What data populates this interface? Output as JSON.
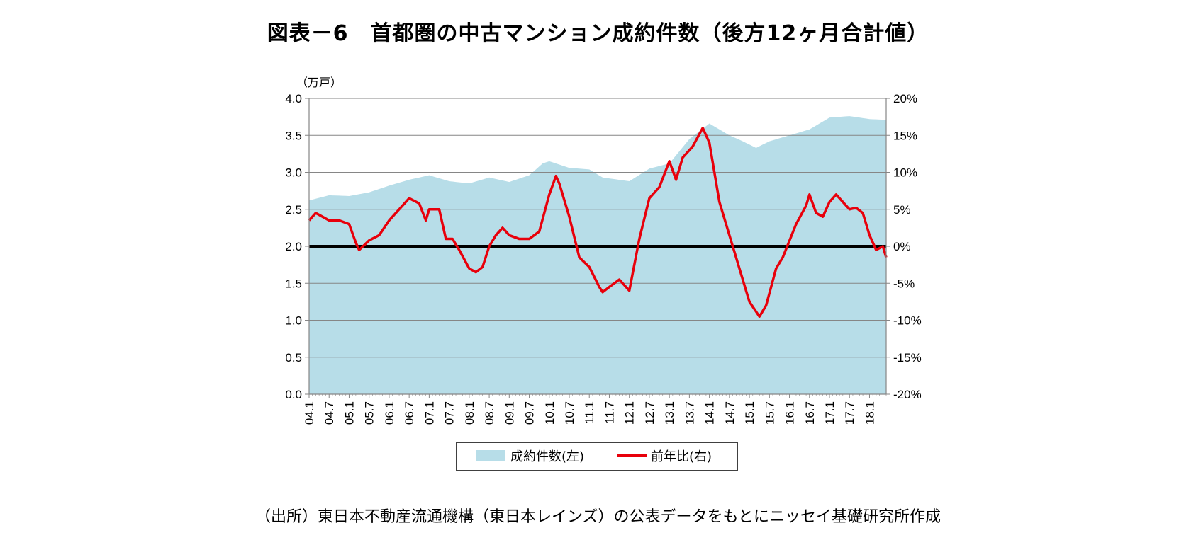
{
  "title": "図表－6　首都圏の中古マンション成約件数（後方12ヶ月合計値）",
  "source": "（出所）東日本不動産流通機構（東日本レインズ）の公表データをもとにニッセイ基礎研究所作成",
  "colors": {
    "area": "#b7dde8",
    "line": "#e8000b",
    "zero": "#000000",
    "grid": "#868686"
  },
  "chart_data": {
    "type": "area",
    "left_unit": "（万戸）",
    "left_axis": {
      "range": [
        0,
        4.0
      ],
      "ticks": [
        "0.0",
        "0.5",
        "1.0",
        "1.5",
        "2.0",
        "2.5",
        "3.0",
        "3.5",
        "4.0"
      ]
    },
    "right_axis": {
      "range": [
        -20,
        20
      ],
      "ticks": [
        "-20%",
        "-15%",
        "-10%",
        "-5%",
        "0%",
        "5%",
        "10%",
        "15%",
        "20%"
      ]
    },
    "x_ticks": [
      "04.1",
      "04.7",
      "05.1",
      "05.7",
      "06.1",
      "06.7",
      "07.1",
      "07.7",
      "08.1",
      "08.7",
      "09.1",
      "09.7",
      "10.1",
      "10.7",
      "11.1",
      "11.7",
      "12.1",
      "12.7",
      "13.1",
      "13.7",
      "14.1",
      "14.7",
      "15.1",
      "15.7",
      "16.1",
      "16.7",
      "17.1",
      "17.7",
      "18.1"
    ],
    "grid": true,
    "legend_position": "bottom",
    "series": [
      {
        "name": "成約件数(左)",
        "type": "area",
        "axis": "left",
        "anchors": [
          [
            0,
            2.62
          ],
          [
            6,
            2.69
          ],
          [
            12,
            2.68
          ],
          [
            18,
            2.73
          ],
          [
            24,
            2.82
          ],
          [
            30,
            2.9
          ],
          [
            36,
            2.96
          ],
          [
            42,
            2.88
          ],
          [
            48,
            2.85
          ],
          [
            54,
            2.93
          ],
          [
            60,
            2.87
          ],
          [
            66,
            2.96
          ],
          [
            70,
            3.12
          ],
          [
            72,
            3.15
          ],
          [
            78,
            3.06
          ],
          [
            84,
            3.04
          ],
          [
            88,
            2.93
          ],
          [
            96,
            2.88
          ],
          [
            102,
            3.05
          ],
          [
            108,
            3.12
          ],
          [
            114,
            3.45
          ],
          [
            120,
            3.66
          ],
          [
            126,
            3.5
          ],
          [
            130,
            3.42
          ],
          [
            134,
            3.33
          ],
          [
            138,
            3.42
          ],
          [
            144,
            3.5
          ],
          [
            150,
            3.58
          ],
          [
            156,
            3.74
          ],
          [
            162,
            3.76
          ],
          [
            168,
            3.72
          ],
          [
            173,
            3.71
          ]
        ]
      },
      {
        "name": "前年比(右)",
        "type": "line",
        "axis": "right",
        "anchors": [
          [
            0,
            3.5
          ],
          [
            2,
            4.5
          ],
          [
            6,
            3.5
          ],
          [
            9,
            3.5
          ],
          [
            12,
            3.0
          ],
          [
            14,
            0.5
          ],
          [
            15,
            -0.5
          ],
          [
            18,
            0.8
          ],
          [
            21,
            1.5
          ],
          [
            24,
            3.5
          ],
          [
            27,
            5.0
          ],
          [
            30,
            6.5
          ],
          [
            33,
            5.8
          ],
          [
            35,
            3.5
          ],
          [
            36,
            5.0
          ],
          [
            39,
            5.0
          ],
          [
            41,
            1.0
          ],
          [
            43,
            1.0
          ],
          [
            45,
            -0.5
          ],
          [
            48,
            -3.0
          ],
          [
            50,
            -3.5
          ],
          [
            52,
            -2.8
          ],
          [
            54,
            0.0
          ],
          [
            56,
            1.5
          ],
          [
            58,
            2.5
          ],
          [
            60,
            1.5
          ],
          [
            63,
            1.0
          ],
          [
            66,
            1.0
          ],
          [
            69,
            2.0
          ],
          [
            72,
            7.0
          ],
          [
            74,
            9.5
          ],
          [
            75,
            8.5
          ],
          [
            78,
            4.0
          ],
          [
            81,
            -1.5
          ],
          [
            84,
            -2.8
          ],
          [
            87,
            -5.5
          ],
          [
            88,
            -6.2
          ],
          [
            90,
            -5.5
          ],
          [
            93,
            -4.5
          ],
          [
            96,
            -6.0
          ],
          [
            99,
            1.0
          ],
          [
            102,
            6.5
          ],
          [
            105,
            8.0
          ],
          [
            108,
            11.5
          ],
          [
            110,
            9.0
          ],
          [
            112,
            12.0
          ],
          [
            115,
            13.5
          ],
          [
            118,
            16.0
          ],
          [
            120,
            14.0
          ],
          [
            123,
            6.0
          ],
          [
            126,
            1.5
          ],
          [
            129,
            -3.0
          ],
          [
            132,
            -7.5
          ],
          [
            135,
            -9.5
          ],
          [
            137,
            -8.0
          ],
          [
            140,
            -3.0
          ],
          [
            142,
            -1.5
          ],
          [
            146,
            3.0
          ],
          [
            149,
            5.5
          ],
          [
            150,
            7.0
          ],
          [
            152,
            4.5
          ],
          [
            154,
            4.0
          ],
          [
            156,
            6.0
          ],
          [
            158,
            7.0
          ],
          [
            160,
            6.0
          ],
          [
            162,
            5.0
          ],
          [
            164,
            5.2
          ],
          [
            166,
            4.5
          ],
          [
            168,
            1.5
          ],
          [
            170,
            -0.5
          ],
          [
            172,
            0.0
          ],
          [
            173,
            -1.5
          ]
        ]
      },
      {
        "name": "",
        "type": "zero-line",
        "axis": "right",
        "value": 0
      }
    ]
  }
}
